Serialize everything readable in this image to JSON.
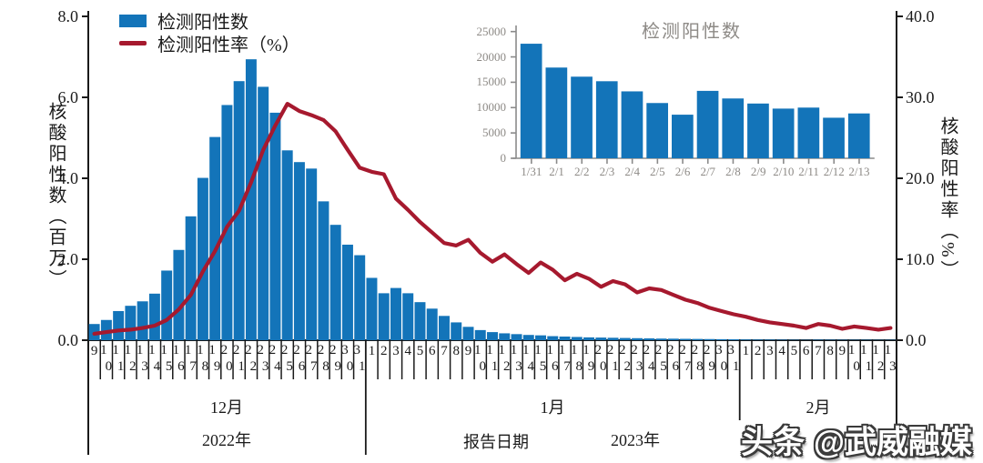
{
  "legend": {
    "bars_label": "检测阳性数",
    "line_label": "检测阳性率（%）"
  },
  "axes": {
    "left_title": "核酸阳性数（百万）",
    "right_title": "核酸阳性率（%）",
    "x_title": "报告日期",
    "left_ticks": [
      "0.0",
      "2.0",
      "4.0",
      "6.0",
      "8.0"
    ],
    "right_ticks": [
      "0.0",
      "10.0",
      "20.0",
      "30.0",
      "40.0"
    ]
  },
  "months": [
    {
      "label": "12月"
    },
    {
      "label": "1月"
    },
    {
      "label": "2月"
    }
  ],
  "years": [
    {
      "label": "2022年"
    },
    {
      "label": "2023年"
    }
  ],
  "watermark": "头条 @武威融媒",
  "colors": {
    "bar": "#1374b9",
    "line": "#a6192e",
    "inset_text": "#8d8a86",
    "inset_axis": "#8a8a8a",
    "axis": "#1a1a1a"
  },
  "chart_data": [
    {
      "type": "bar",
      "title": "",
      "xlabel": "报告日期",
      "ylabel_left": "核酸阳性数（百万）",
      "ylabel_right": "核酸阳性率（%）",
      "ylim_left": [
        0,
        8
      ],
      "ylim_right": [
        0,
        40
      ],
      "legend_position": "top-left",
      "month_groups": [
        {
          "label": "12月",
          "year": "2022年",
          "days": 23
        },
        {
          "label": "1月",
          "year": "2023年",
          "days": 31
        },
        {
          "label": "2月",
          "days": 13
        }
      ],
      "categories": [
        "9",
        "10",
        "11",
        "12",
        "13",
        "14",
        "15",
        "16",
        "17",
        "18",
        "19",
        "20",
        "21",
        "22",
        "23",
        "24",
        "25",
        "26",
        "27",
        "28",
        "29",
        "30",
        "31",
        "1",
        "2",
        "3",
        "4",
        "5",
        "6",
        "7",
        "8",
        "9",
        "10",
        "11",
        "12",
        "13",
        "14",
        "15",
        "16",
        "17",
        "18",
        "19",
        "20",
        "21",
        "22",
        "23",
        "24",
        "25",
        "26",
        "27",
        "28",
        "29",
        "30",
        "31",
        "1",
        "2",
        "3",
        "4",
        "5",
        "6",
        "7",
        "8",
        "9",
        "10",
        "11",
        "12",
        "13"
      ],
      "series": [
        {
          "name": "检测阳性数",
          "type": "bar",
          "axis": "left",
          "unit": "百万",
          "values": [
            0.4,
            0.5,
            0.72,
            0.85,
            0.96,
            1.15,
            1.72,
            2.23,
            3.06,
            4.01,
            5.02,
            5.81,
            6.4,
            6.94,
            6.26,
            5.62,
            4.69,
            4.4,
            4.24,
            3.43,
            2.85,
            2.36,
            2.1,
            1.54,
            1.16,
            1.29,
            1.16,
            0.94,
            0.78,
            0.6,
            0.44,
            0.33,
            0.25,
            0.2,
            0.17,
            0.15,
            0.13,
            0.12,
            0.1,
            0.09,
            0.08,
            0.07,
            0.065,
            0.06,
            0.055,
            0.05,
            0.045,
            0.04,
            0.038,
            0.034,
            0.031,
            0.028,
            0.025,
            0.0226,
            0.0179,
            0.0161,
            0.0152,
            0.0132,
            0.0109,
            0.0086,
            0.0133,
            0.0118,
            0.0108,
            0.0098,
            0.01,
            0.008,
            0.0088
          ]
        },
        {
          "name": "检测阳性率（%）",
          "type": "line",
          "axis": "right",
          "unit": "%",
          "values": [
            0.8,
            1.0,
            1.2,
            1.3,
            1.5,
            1.8,
            2.5,
            3.8,
            5.6,
            8.5,
            11.0,
            14.0,
            16.0,
            19.5,
            23.5,
            26.5,
            29.2,
            28.3,
            27.8,
            27.2,
            25.8,
            23.5,
            21.3,
            20.8,
            20.5,
            17.5,
            16.1,
            14.6,
            13.3,
            12.0,
            11.7,
            12.4,
            10.8,
            9.7,
            10.6,
            9.4,
            8.3,
            9.6,
            8.7,
            7.4,
            8.2,
            7.6,
            6.6,
            7.3,
            6.9,
            5.9,
            6.4,
            6.2,
            5.6,
            5.0,
            4.6,
            4.0,
            3.6,
            3.2,
            2.9,
            2.5,
            2.2,
            2.0,
            1.8,
            1.5,
            2.0,
            1.8,
            1.4,
            1.7,
            1.5,
            1.3,
            1.5
          ]
        }
      ]
    },
    {
      "type": "bar",
      "title": "检测阳性数",
      "ylim": [
        0,
        25000
      ],
      "yticks": [
        0,
        5000,
        10000,
        15000,
        20000,
        25000
      ],
      "categories": [
        "1/31",
        "2/1",
        "2/2",
        "2/3",
        "2/4",
        "2/5",
        "2/6",
        "2/7",
        "2/8",
        "2/9",
        "2/10",
        "2/11",
        "2/12",
        "2/13"
      ],
      "values": [
        22600,
        17900,
        16100,
        15200,
        13200,
        10900,
        8600,
        13300,
        11800,
        10800,
        9800,
        10000,
        8000,
        8847
      ]
    }
  ]
}
